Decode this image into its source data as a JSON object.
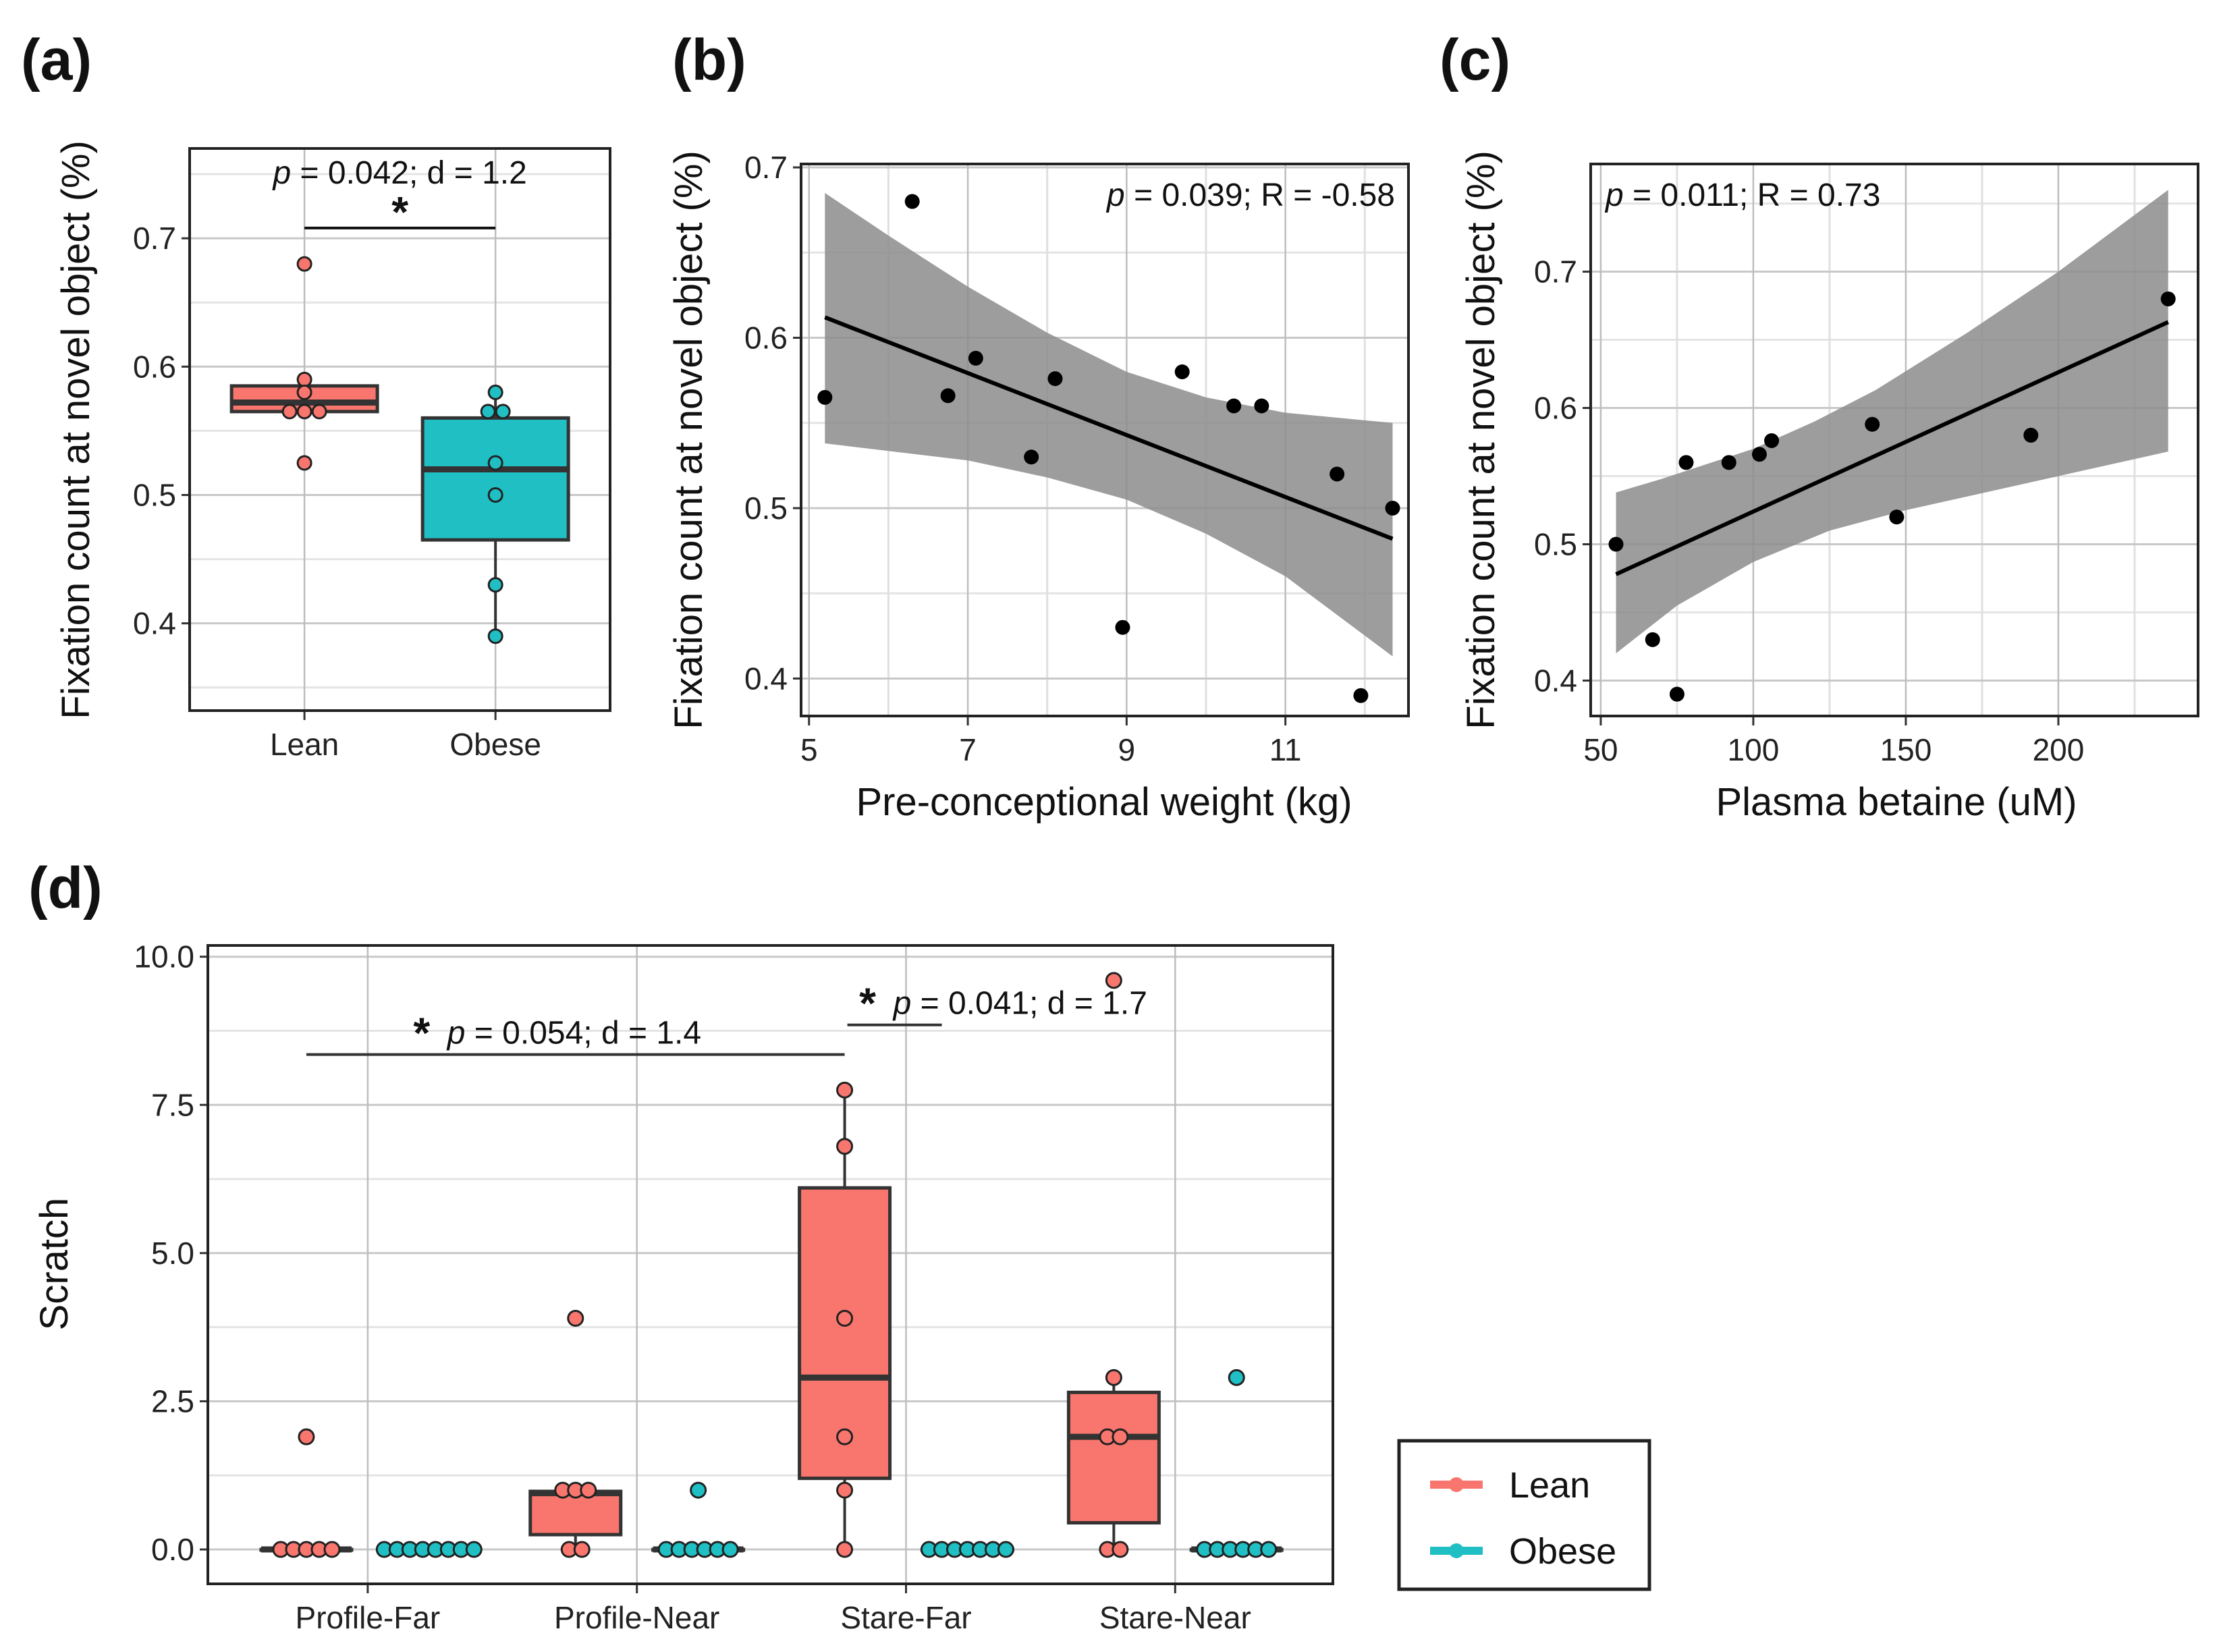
{
  "colors": {
    "lean": "#F8766D",
    "obese": "#1FBFC4",
    "band": "#8c8c8c",
    "line": "#000000"
  },
  "chart_data": [
    {
      "panel_label": "(a)",
      "type": "box",
      "ylabel": "Fixation count at novel object (%)",
      "xlabel": "",
      "categories": [
        "Lean",
        "Obese"
      ],
      "ylim": [
        0.332,
        0.77
      ],
      "yticks": [
        "0.4",
        "0.5",
        "0.6",
        "0.7"
      ],
      "ytick_values": [
        0.4,
        0.5,
        0.6,
        0.7
      ],
      "grid": true,
      "groups": [
        {
          "name": "Lean",
          "q1": 0.565,
          "median": 0.572,
          "q3": 0.585,
          "whisker_low": 0.565,
          "whisker_high": 0.585,
          "points": [
            0.68,
            0.59,
            0.58,
            0.565,
            0.565,
            0.565,
            0.525
          ]
        },
        {
          "name": "Obese",
          "q1": 0.465,
          "median": 0.52,
          "q3": 0.56,
          "whisker_low": 0.39,
          "whisker_high": 0.58,
          "points": [
            0.58,
            0.565,
            0.565,
            0.525,
            0.5,
            0.43,
            0.39
          ]
        }
      ],
      "annotation": {
        "star": "*",
        "p_symbol": "p",
        "text": " = 0.042; d = 1.2",
        "bracket_y": 0.708
      }
    },
    {
      "panel_label": "(b)",
      "type": "scatter",
      "ylabel": "Fixation count at novel object (%)",
      "xlabel": "Pre-conceptional weight (kg)",
      "xlim": [
        4.9,
        12.55
      ],
      "ylim": [
        0.378,
        0.702
      ],
      "xticks": [
        "5",
        "7",
        "9",
        "11"
      ],
      "xtick_values": [
        5,
        7,
        9,
        11
      ],
      "xminor": [
        6,
        8,
        10,
        12
      ],
      "yticks": [
        "0.4",
        "0.5",
        "0.6",
        "0.7"
      ],
      "ytick_values": [
        0.4,
        0.5,
        0.6,
        0.7
      ],
      "yminor": [
        0.45,
        0.55,
        0.65
      ],
      "grid": true,
      "points": [
        [
          5.2,
          0.565
        ],
        [
          6.3,
          0.68
        ],
        [
          6.75,
          0.566
        ],
        [
          7.1,
          0.588
        ],
        [
          7.8,
          0.53
        ],
        [
          8.1,
          0.576
        ],
        [
          8.95,
          0.43
        ],
        [
          9.7,
          0.58
        ],
        [
          10.35,
          0.56
        ],
        [
          10.7,
          0.56
        ],
        [
          11.65,
          0.52
        ],
        [
          11.95,
          0.39
        ],
        [
          12.35,
          0.5
        ]
      ],
      "fit_line": [
        [
          5.2,
          0.612
        ],
        [
          12.35,
          0.482
        ]
      ],
      "ci_upper": [
        [
          5.2,
          0.685
        ],
        [
          6,
          0.66
        ],
        [
          7,
          0.63
        ],
        [
          8,
          0.603
        ],
        [
          9,
          0.58
        ],
        [
          10,
          0.565
        ],
        [
          11,
          0.556
        ],
        [
          12.35,
          0.55
        ]
      ],
      "ci_lower": [
        [
          5.2,
          0.538
        ],
        [
          7,
          0.528
        ],
        [
          8,
          0.518
        ],
        [
          9,
          0.505
        ],
        [
          10,
          0.485
        ],
        [
          11,
          0.46
        ],
        [
          12.35,
          0.413
        ]
      ],
      "annotation": {
        "p_symbol": "p",
        "text": " = 0.039; R = -0.58",
        "position": "top-right"
      }
    },
    {
      "panel_label": "(c)",
      "type": "scatter",
      "ylabel": "Fixation count at novel object (%)",
      "xlabel": "Plasma betaine (uM)",
      "xlim": [
        46.7,
        245.8
      ],
      "ylim": [
        0.374,
        0.779
      ],
      "xticks": [
        "50",
        "100",
        "150",
        "200"
      ],
      "xtick_values": [
        50,
        100,
        150,
        200
      ],
      "xminor": [
        75,
        125,
        175,
        225
      ],
      "yticks": [
        "0.4",
        "0.5",
        "0.6",
        "0.7"
      ],
      "ytick_values": [
        0.4,
        0.5,
        0.6,
        0.7
      ],
      "yminor": [
        0.45,
        0.55,
        0.65,
        0.75
      ],
      "grid": true,
      "points": [
        [
          55,
          0.5
        ],
        [
          67,
          0.43
        ],
        [
          75,
          0.39
        ],
        [
          78,
          0.56
        ],
        [
          92,
          0.56
        ],
        [
          102,
          0.566
        ],
        [
          106,
          0.576
        ],
        [
          139,
          0.588
        ],
        [
          147,
          0.52
        ],
        [
          191,
          0.58
        ],
        [
          236,
          0.68
        ]
      ],
      "fit_line": [
        [
          55,
          0.478
        ],
        [
          236,
          0.663
        ]
      ],
      "ci_upper": [
        [
          55,
          0.538
        ],
        [
          70,
          0.548
        ],
        [
          100,
          0.57
        ],
        [
          120,
          0.59
        ],
        [
          140,
          0.613
        ],
        [
          170,
          0.655
        ],
        [
          200,
          0.7
        ],
        [
          236,
          0.76
        ]
      ],
      "ci_lower": [
        [
          55,
          0.42
        ],
        [
          75,
          0.455
        ],
        [
          100,
          0.487
        ],
        [
          125,
          0.51
        ],
        [
          150,
          0.525
        ],
        [
          200,
          0.55
        ],
        [
          236,
          0.568
        ]
      ],
      "annotation": {
        "p_symbol": "p",
        "text": " = 0.011; R = 0.73",
        "position": "top-left"
      }
    },
    {
      "panel_label": "(d)",
      "type": "box",
      "ylabel": "Scratch",
      "xlabel": "",
      "categories": [
        "Profile-Far",
        "Profile-Near",
        "Stare-Far",
        "Stare-Near"
      ],
      "ylim": [
        -0.58,
        10.19
      ],
      "yticks": [
        "0.0",
        "2.5",
        "5.0",
        "7.5",
        "10.0"
      ],
      "ytick_values": [
        0,
        2.5,
        5,
        7.5,
        10
      ],
      "yminor": [
        1.25,
        3.75,
        6.25,
        8.75
      ],
      "grid": true,
      "legend": {
        "entries": [
          "Lean",
          "Obese"
        ],
        "placement": "right"
      },
      "series": [
        {
          "name": "Lean",
          "groups": [
            {
              "q1": 0,
              "median": 0,
              "q3": 0,
              "whisker_low": 0,
              "whisker_high": 0,
              "points": [
                1.9,
                0,
                0,
                0,
                0,
                0
              ]
            },
            {
              "q1": 0.25,
              "median": 0.95,
              "q3": 0.98,
              "whisker_low": 0,
              "whisker_high": 1,
              "points": [
                3.9,
                1,
                1,
                1,
                0,
                0
              ]
            },
            {
              "q1": 1.2,
              "median": 2.9,
              "q3": 6.1,
              "whisker_low": 0,
              "whisker_high": 7.75,
              "points": [
                7.75,
                6.8,
                3.9,
                1.9,
                1.0,
                0
              ]
            },
            {
              "q1": 0.45,
              "median": 1.9,
              "q3": 2.65,
              "whisker_low": 0,
              "whisker_high": 2.9,
              "points": [
                9.6,
                2.9,
                1.9,
                1.9,
                0,
                0
              ]
            }
          ]
        },
        {
          "name": "Obese",
          "groups": [
            {
              "q1": 0,
              "median": 0,
              "q3": 0,
              "whisker_low": 0,
              "whisker_high": 0,
              "points": [
                0,
                0,
                0,
                0,
                0,
                0,
                0,
                0
              ]
            },
            {
              "q1": 0,
              "median": 0,
              "q3": 0,
              "whisker_low": 0,
              "whisker_high": 0,
              "points": [
                1.0,
                0,
                0,
                0,
                0,
                0,
                0
              ]
            },
            {
              "q1": 0,
              "median": 0,
              "q3": 0,
              "whisker_low": 0,
              "whisker_high": 0,
              "points": [
                0,
                0,
                0,
                0,
                0,
                0,
                0
              ]
            },
            {
              "q1": 0,
              "median": 0,
              "q3": 0,
              "whisker_low": 0,
              "whisker_high": 0,
              "points": [
                2.9,
                0,
                0,
                0,
                0,
                0,
                0
              ]
            }
          ]
        }
      ],
      "annotations": [
        {
          "star": "*",
          "p_symbol": "p",
          "text": " = 0.054; d = 1.4",
          "bracket_y": 8.35,
          "from": "Profile-Far Lean",
          "to": "Stare-Far Lean"
        },
        {
          "star": "*",
          "p_symbol": "p",
          "text": " = 0.041; d = 1.7",
          "bracket_y": 8.85,
          "from": "Stare-Far Lean",
          "to": "Stare-Far Obese"
        }
      ]
    }
  ]
}
